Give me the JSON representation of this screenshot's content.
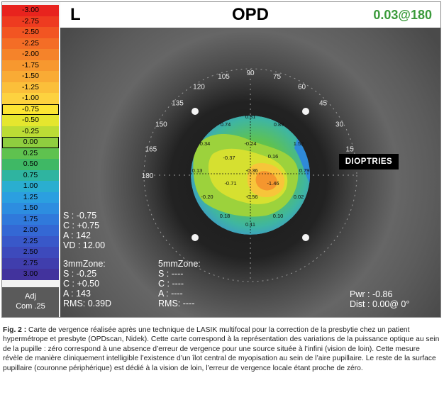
{
  "header": {
    "eye": "L",
    "title": "OPD",
    "cylinder_readout": "0.03@180"
  },
  "scale": {
    "steps": [
      {
        "label": "-3.00",
        "color": "#e8231e"
      },
      {
        "label": "-2.75",
        "color": "#ee3b20"
      },
      {
        "label": "-2.50",
        "color": "#f25522"
      },
      {
        "label": "-2.25",
        "color": "#f46d26"
      },
      {
        "label": "-2.00",
        "color": "#f5832a"
      },
      {
        "label": "-1.75",
        "color": "#f7982f"
      },
      {
        "label": "-1.50",
        "color": "#f9ab35"
      },
      {
        "label": "-1.25",
        "color": "#fbbf3a"
      },
      {
        "label": "-1.00",
        "color": "#fdd23f"
      },
      {
        "label": "-0.75",
        "color": "#fce533"
      },
      {
        "label": "-0.50",
        "color": "#e5e62e"
      },
      {
        "label": "-0.25",
        "color": "#bcdc35"
      },
      {
        "label": "0.00",
        "color": "#8fce3f"
      },
      {
        "label": "0.25",
        "color": "#5fc24f"
      },
      {
        "label": "0.50",
        "color": "#3fb865"
      },
      {
        "label": "0.75",
        "color": "#2fb4a0"
      },
      {
        "label": "1.00",
        "color": "#2aaed0"
      },
      {
        "label": "1.25",
        "color": "#2b9fe0"
      },
      {
        "label": "1.50",
        "color": "#2d8de0"
      },
      {
        "label": "1.75",
        "color": "#3079db"
      },
      {
        "label": "2.00",
        "color": "#3468d4"
      },
      {
        "label": "2.25",
        "color": "#3958c9"
      },
      {
        "label": "2.50",
        "color": "#3d4abc"
      },
      {
        "label": "2.75",
        "color": "#403ead"
      },
      {
        "label": "3.00",
        "color": "#42339d"
      }
    ],
    "adj": "Adj",
    "com": "Com .25"
  },
  "axis_labels": [
    "90",
    "75",
    "60",
    "45",
    "30",
    "15",
    "180",
    "165",
    "150",
    "135",
    "120",
    "105"
  ],
  "map_values": {
    "top": "0.31",
    "upper_left": "0.74",
    "upper_right": "0.89",
    "left_upper": "0.34",
    "mid_upper_left": "-0.37",
    "mid_upper_center": "-0.24",
    "mid_upper_right": "0.16",
    "right_upper": "1.52",
    "left": "0.13",
    "center": "-0.36",
    "right": "0.79",
    "center_left": "-0.71",
    "peak": "-1.46",
    "lower_left": "-0.20",
    "lower_center": "-0.56",
    "lower_right": "0.02",
    "bottom_left": "0.18",
    "bottom_right": "0.10",
    "bottom": "0.11"
  },
  "unit_label": "DIOPTRIES",
  "total": {
    "s": "S :  -0.75",
    "c": "C :  +0.75",
    "a": "A :  142",
    "vd": "VD : 12.00"
  },
  "zone3": {
    "title": "3mmZone:",
    "s": "S :  -0.25",
    "c": "C :  +0.50",
    "a": "A :  143",
    "rms": "RMS: 0.39D"
  },
  "zone5": {
    "title": "5mmZone:",
    "s": "S :  ----",
    "c": "C :  ----",
    "a": "A :  ----",
    "rms": "RMS: ----"
  },
  "power": {
    "pwr": "Pwr :  -0.86",
    "dist": "Dist :  0.00@  0°"
  },
  "caption": {
    "label": "Fig. 2 :",
    "text": " Carte de vergence réalisée après une technique de LASIK multifocal pour la correction de la presbytie chez un patient hypermétrope et presbyte (OPDscan, Nidek). Cette carte correspond à la représentation des variations de la puissance optique au sein de la pupille : zéro correspond à une absence d’erreur de vergence pour une source située à l’infini (vision de loin). Cette mesure révèle de manière cliniquement intelligible l’existence d’un îlot central de myopisation au sein de l’aire pupillaire. Le reste de la surface pupillaire (couronne périphérique) est dédié à la vision de loin, l’erreur de vergence locale étant proche de zéro."
  }
}
